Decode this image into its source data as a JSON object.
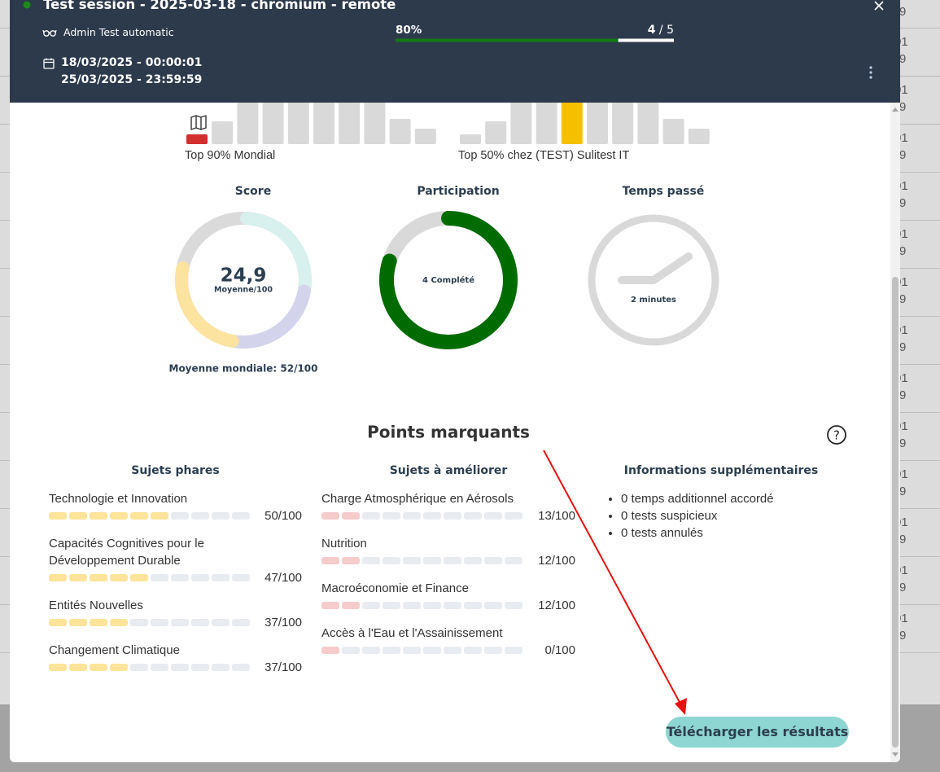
{
  "background": {
    "rows": [
      [
        "9"
      ],
      [
        "01",
        "9"
      ],
      [
        "01",
        "9"
      ],
      [
        "01",
        "9"
      ],
      [
        "01",
        "9"
      ],
      [
        "01",
        "9"
      ],
      [
        "01",
        "9"
      ],
      [
        "01",
        "9"
      ],
      [
        "01",
        "9"
      ],
      [
        "01",
        "9"
      ],
      [
        "01",
        "9"
      ],
      [
        "01",
        "9"
      ],
      [
        "01",
        "9"
      ],
      [
        "01",
        "9"
      ]
    ]
  },
  "header": {
    "title": "Test session - 2025-03-18 - chromium - remote",
    "user": "Admin Test automatic",
    "start": "18/03/2025 - 00:00:01",
    "end": "25/03/2025 - 23:59:59",
    "progress": {
      "label": "80%",
      "done": 4,
      "separator": "/",
      "total": 5
    }
  },
  "rankings": [
    {
      "label": "Top 90% Mondial",
      "bars": [
        12,
        28,
        70,
        70,
        70,
        70,
        70,
        62,
        31,
        19
      ],
      "highlight": 0,
      "highlight_color": "#d32f2f"
    },
    {
      "label": "Top 50% chez (TEST) Sulitest IT",
      "bars": [
        12,
        28,
        70,
        70,
        70,
        70,
        70,
        62,
        31,
        19
      ],
      "highlight": 4,
      "highlight_color": "#f5c000"
    }
  ],
  "stats": {
    "score": {
      "title": "Score",
      "value": "24,9",
      "unit": "Moyenne/100",
      "world_average": "Moyenne mondiale: 52/100",
      "segments": [
        {
          "color": "#d8f0ee",
          "value": 27
        },
        {
          "color": "#d3d4ec",
          "value": 25
        },
        {
          "color": "#fde3a0",
          "value": 27
        }
      ]
    },
    "participation": {
      "title": "Participation",
      "label": "4 Complété",
      "color": "#006b00"
    },
    "time": {
      "title": "Temps passé",
      "label": "2 minutes"
    }
  },
  "highlights": {
    "title": "Points marquants",
    "help": "?",
    "strengths": {
      "title": "Sujets phares",
      "color": "#fde49a",
      "items": [
        {
          "name": "Technologie et Innovation",
          "filled": 6,
          "score": "50/100"
        },
        {
          "name": "Capacités Cognitives pour le Développement Durable",
          "filled": 5,
          "score": "47/100"
        },
        {
          "name": "Entités Nouvelles",
          "filled": 4,
          "score": "37/100"
        },
        {
          "name": "Changement Climatique",
          "filled": 4,
          "score": "37/100"
        }
      ]
    },
    "improve": {
      "title": "Sujets à améliorer",
      "color": "#f6cbcb",
      "items": [
        {
          "name": "Charge Atmosphérique en Aérosols",
          "filled": 2,
          "score": "13/100"
        },
        {
          "name": "Nutrition",
          "filled": 2,
          "score": "12/100"
        },
        {
          "name": "Macroéconomie et Finance",
          "filled": 2,
          "score": "12/100"
        },
        {
          "name": "Accès à l'Eau et l'Assainissement",
          "filled": 1,
          "score": "0/100"
        }
      ]
    },
    "info": {
      "title": "Informations supplémentaires",
      "items": [
        "0 temps additionnel accordé",
        "0 tests suspicieux",
        "0 tests annulés"
      ]
    }
  },
  "button": "Télécharger les résultats"
}
